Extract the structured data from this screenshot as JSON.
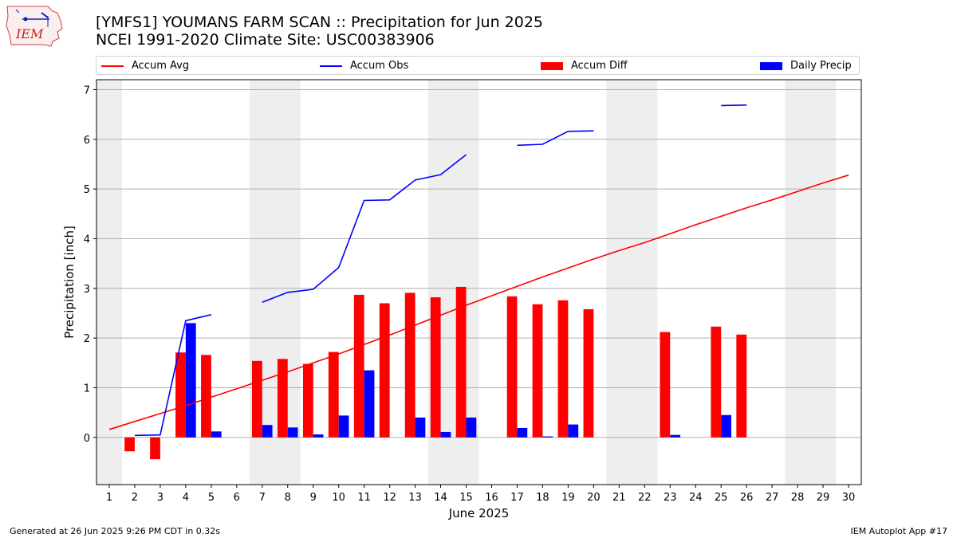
{
  "header": {
    "title": "[YMFS1] YOUMANS FARM SCAN :: Precipitation for Jun 2025",
    "subtitle": "NCEI 1991-2020 Climate Site: USC00383906"
  },
  "logo": {
    "text": "IEM",
    "icon": "iowa-state-map-logo"
  },
  "legend": [
    {
      "label": "Accum Avg",
      "kind": "line",
      "color": "#ff0000"
    },
    {
      "label": "Accum Obs",
      "kind": "line",
      "color": "#0000ff"
    },
    {
      "label": "Accum Diff",
      "kind": "box",
      "color": "#ff0000"
    },
    {
      "label": "Daily Precip",
      "kind": "box",
      "color": "#0000ff"
    }
  ],
  "footer": {
    "left": "Generated at 26 Jun 2025 9:26 PM CDT in 0.32s",
    "right": "IEM Autoplot App #17"
  },
  "chart_data": {
    "type": "bar",
    "xlabel": "June 2025",
    "ylabel": "Precipitation [inch]",
    "xlim": [
      0.5,
      30.5
    ],
    "ylim": [
      -0.95,
      7.2
    ],
    "x": [
      1,
      2,
      3,
      4,
      5,
      6,
      7,
      8,
      9,
      10,
      11,
      12,
      13,
      14,
      15,
      16,
      17,
      18,
      19,
      20,
      21,
      22,
      23,
      24,
      25,
      26,
      27,
      28,
      29,
      30
    ],
    "yticks": [
      0,
      1,
      2,
      3,
      4,
      5,
      6,
      7
    ],
    "grid": "horizontal",
    "legend_position": "top",
    "weekend_shading": [
      [
        0.5,
        1.5
      ],
      [
        6.5,
        8.5
      ],
      [
        13.5,
        15.5
      ],
      [
        20.5,
        22.5
      ],
      [
        27.5,
        29.5
      ]
    ],
    "series": [
      {
        "name": "Accum Avg",
        "type": "line",
        "color": "#ff0000",
        "values": [
          0.16,
          0.32,
          0.48,
          0.64,
          0.81,
          0.98,
          1.15,
          1.32,
          1.5,
          1.68,
          1.87,
          2.06,
          2.26,
          2.46,
          2.66,
          2.85,
          3.04,
          3.23,
          3.41,
          3.59,
          3.76,
          3.92,
          4.1,
          4.28,
          4.45,
          4.62,
          4.78,
          4.95,
          5.12,
          5.28
        ]
      },
      {
        "name": "Accum Obs",
        "type": "line",
        "color": "#0000ff",
        "values": [
          null,
          0.04,
          0.05,
          2.35,
          2.47,
          null,
          2.72,
          2.92,
          2.98,
          3.42,
          4.77,
          4.78,
          5.18,
          5.29,
          5.69,
          null,
          5.88,
          5.9,
          6.16,
          6.17,
          null,
          null,
          null,
          null,
          6.68,
          6.69,
          null,
          null,
          null,
          null
        ]
      },
      {
        "name": "Accum Diff",
        "type": "bar",
        "color": "#ff0000",
        "values": [
          null,
          -0.28,
          -0.44,
          1.71,
          1.66,
          null,
          1.54,
          1.58,
          1.48,
          1.72,
          2.87,
          2.7,
          2.91,
          2.82,
          3.03,
          null,
          2.84,
          2.68,
          2.76,
          2.58,
          null,
          null,
          2.12,
          null,
          2.23,
          2.07,
          null,
          null,
          null,
          null
        ]
      },
      {
        "name": "Daily Precip",
        "type": "bar",
        "color": "#0000ff",
        "values": [
          null,
          0.0,
          0.0,
          2.3,
          0.12,
          null,
          0.25,
          0.2,
          0.06,
          0.44,
          1.35,
          0.0,
          0.4,
          0.11,
          0.4,
          null,
          0.19,
          0.02,
          0.26,
          0.0,
          null,
          null,
          0.05,
          null,
          0.45,
          0.0,
          null,
          null,
          null,
          null
        ]
      }
    ]
  }
}
